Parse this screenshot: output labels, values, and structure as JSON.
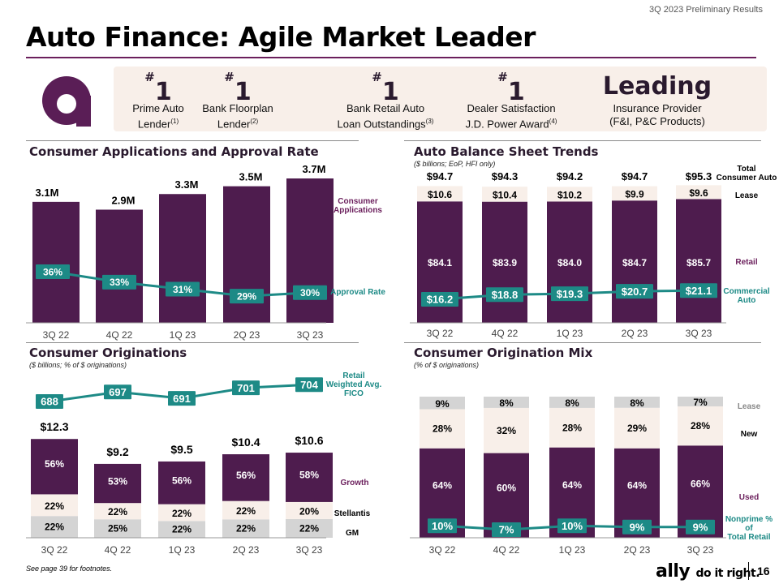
{
  "header": {
    "tag": "3Q 2023 Preliminary Results",
    "title": "Auto Finance: Agile Market Leader"
  },
  "badges": [
    {
      "big": "1",
      "hash": "#",
      "line1": "Prime Auto",
      "line2": "Lender",
      "fn": "(1)"
    },
    {
      "big": "1",
      "hash": "#",
      "line1": "Bank Floorplan",
      "line2": "Lender",
      "fn": "(2)"
    },
    {
      "big": "1",
      "hash": "#",
      "line1": "Bank Retail Auto",
      "line2": "Loan Outstandings",
      "fn": "(3)"
    },
    {
      "big": "1",
      "hash": "#",
      "line1": "Dealer Satisfaction",
      "line2": "J.D. Power Award",
      "fn": "(4)"
    },
    {
      "big": "Leading",
      "hash": "",
      "line1": "Insurance Provider",
      "line2": "(F&I, P&C Products)",
      "fn": ""
    }
  ],
  "colors": {
    "purple": "#4e1c4e",
    "teal": "#1d8a86",
    "cream": "#f8efe9",
    "grey": "#d4d4d4",
    "accent": "#6b1f5c"
  },
  "chart_data": [
    {
      "type": "bar",
      "title": "Consumer Applications and Approval Rate",
      "categories": [
        "3Q 22",
        "4Q 22",
        "1Q 23",
        "2Q 23",
        "3Q 23"
      ],
      "series": [
        {
          "name": "Consumer Applications",
          "values": [
            3.1,
            2.9,
            3.3,
            3.5,
            3.7
          ],
          "labels": [
            "3.1M",
            "2.9M",
            "3.3M",
            "3.5M",
            "3.7M"
          ]
        },
        {
          "name": "Approval Rate",
          "type": "line",
          "values": [
            36,
            33,
            31,
            29,
            30
          ],
          "labels": [
            "36%",
            "33%",
            "31%",
            "29%",
            "30%"
          ]
        }
      ],
      "ylim": [
        0,
        4
      ]
    },
    {
      "type": "bar",
      "title": "Auto Balance Sheet Trends",
      "subtitle": "($ billions; EoP, HFI only)",
      "categories": [
        "3Q 22",
        "4Q 22",
        "1Q 23",
        "2Q 23",
        "3Q 23"
      ],
      "totals_name": "Total Consumer Auto",
      "totals": [
        "$94.7",
        "$94.3",
        "$94.2",
        "$94.7",
        "$95.3"
      ],
      "series": [
        {
          "name": "Retail",
          "values": [
            84.1,
            83.9,
            84.0,
            84.7,
            85.7
          ],
          "labels": [
            "$84.1",
            "$83.9",
            "$84.0",
            "$84.7",
            "$85.7"
          ]
        },
        {
          "name": "Lease",
          "values": [
            10.6,
            10.4,
            10.2,
            9.9,
            9.6
          ],
          "labels": [
            "$10.6",
            "$10.4",
            "$10.2",
            "$9.9",
            "$9.6"
          ]
        },
        {
          "name": "Commercial Auto",
          "type": "line",
          "values": [
            16.2,
            18.8,
            19.3,
            20.7,
            21.1
          ],
          "labels": [
            "$16.2",
            "$18.8",
            "$19.3",
            "$20.7",
            "$21.1"
          ]
        }
      ]
    },
    {
      "type": "bar",
      "title": "Consumer Originations",
      "subtitle": "($ billions; % of $ originations)",
      "categories": [
        "3Q 22",
        "4Q 22",
        "1Q 23",
        "2Q 23",
        "3Q 23"
      ],
      "totals": [
        12.3,
        9.2,
        9.5,
        10.4,
        10.6
      ],
      "total_labels": [
        "$12.3",
        "$9.2",
        "$9.5",
        "$10.4",
        "$10.6"
      ],
      "series": [
        {
          "name": "GM",
          "values": [
            22,
            25,
            22,
            22,
            22
          ],
          "labels": [
            "22%",
            "25%",
            "22%",
            "22%",
            "22%"
          ]
        },
        {
          "name": "Stellantis",
          "values": [
            22,
            22,
            22,
            22,
            20
          ],
          "labels": [
            "22%",
            "22%",
            "22%",
            "22%",
            "20%"
          ]
        },
        {
          "name": "Growth",
          "values": [
            56,
            53,
            56,
            56,
            58
          ],
          "labels": [
            "56%",
            "53%",
            "56%",
            "56%",
            "58%"
          ]
        },
        {
          "name": "Retail Weighted Avg. FICO",
          "type": "line",
          "values": [
            688,
            697,
            691,
            701,
            704
          ],
          "labels": [
            "688",
            "697",
            "691",
            "701",
            "704"
          ]
        }
      ]
    },
    {
      "type": "bar",
      "title": "Consumer Origination Mix",
      "subtitle": "(% of $ originations)",
      "categories": [
        "3Q 22",
        "4Q 22",
        "1Q 23",
        "2Q 23",
        "3Q 23"
      ],
      "series": [
        {
          "name": "Used",
          "values": [
            64,
            60,
            64,
            64,
            66
          ],
          "labels": [
            "64%",
            "60%",
            "64%",
            "64%",
            "66%"
          ]
        },
        {
          "name": "New",
          "values": [
            28,
            32,
            28,
            29,
            28
          ],
          "labels": [
            "28%",
            "32%",
            "28%",
            "29%",
            "28%"
          ]
        },
        {
          "name": "Lease",
          "values": [
            9,
            8,
            8,
            8,
            7
          ],
          "labels": [
            "9%",
            "8%",
            "8%",
            "8%",
            "7%"
          ]
        },
        {
          "name": "Nonprime % of Total Retail",
          "type": "line",
          "values": [
            10,
            7,
            10,
            9,
            9
          ],
          "labels": [
            "10%",
            "7%",
            "10%",
            "9%",
            "9%"
          ]
        }
      ]
    }
  ],
  "legends": {
    "apps": "Consumer Applications",
    "approval": "Approval Rate",
    "total": "Total Consumer Auto",
    "lease": "Lease",
    "retail": "Retail",
    "commercial": "Commercial Auto",
    "fico": "Retail Weighted Avg. FICO",
    "growth": "Growth",
    "stellantis": "Stellantis",
    "gm": "GM",
    "mix_lease": "Lease",
    "new": "New",
    "used": "Used",
    "nonprime": "Nonprime % of Total Retail"
  },
  "footer": {
    "note": "See page 39 for footnotes.",
    "brand": "ally",
    "slogan": "do it right.",
    "page": "16"
  }
}
